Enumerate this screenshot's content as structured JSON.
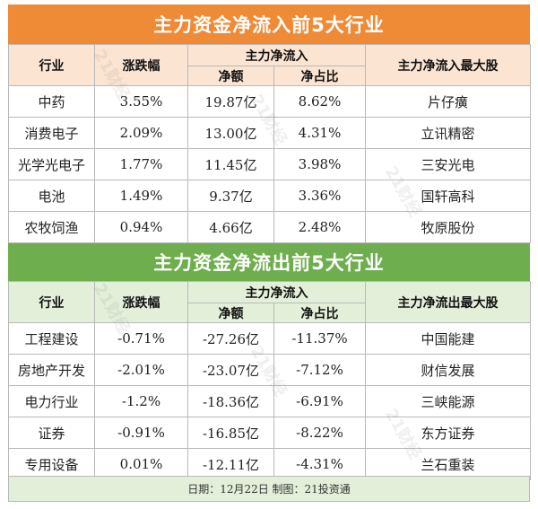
{
  "inflow": {
    "title": "主力资金净流入前5大行业",
    "headers": {
      "industry": "行业",
      "change": "涨跌幅",
      "main_flow": "主力净流入",
      "net_amount": "净额",
      "net_ratio": "净占比",
      "top_stock": "主力净流入最大股"
    },
    "rows": [
      {
        "industry": "中药",
        "change": "3.55%",
        "net_amount": "19.87亿",
        "net_ratio": "8.62%",
        "top_stock": "片仔癀"
      },
      {
        "industry": "消费电子",
        "change": "2.09%",
        "net_amount": "13.00亿",
        "net_ratio": "4.31%",
        "top_stock": "立讯精密"
      },
      {
        "industry": "光学光电子",
        "change": "1.77%",
        "net_amount": "11.45亿",
        "net_ratio": "3.98%",
        "top_stock": "三安光电"
      },
      {
        "industry": "电池",
        "change": "1.49%",
        "net_amount": "9.37亿",
        "net_ratio": "3.36%",
        "top_stock": "国轩高科"
      },
      {
        "industry": "农牧饲渔",
        "change": "0.94%",
        "net_amount": "4.66亿",
        "net_ratio": "2.48%",
        "top_stock": "牧原股份"
      }
    ]
  },
  "outflow": {
    "title": "主力资金净流出前5大行业",
    "headers": {
      "industry": "行业",
      "change": "涨跌幅",
      "main_flow": "主力净流入",
      "net_amount": "净额",
      "net_ratio": "净占比",
      "top_stock": "主力净流出最大股"
    },
    "rows": [
      {
        "industry": "工程建设",
        "change": "-0.71%",
        "net_amount": "-27.26亿",
        "net_ratio": "-11.37%",
        "top_stock": "中国能建"
      },
      {
        "industry": "房地产开发",
        "change": "-2.01%",
        "net_amount": "-23.07亿",
        "net_ratio": "-7.12%",
        "top_stock": "财信发展"
      },
      {
        "industry": "电力行业",
        "change": "-1.2%",
        "net_amount": "-18.36亿",
        "net_ratio": "-6.91%",
        "top_stock": "三峡能源"
      },
      {
        "industry": "证券",
        "change": "-0.91%",
        "net_amount": "-16.85亿",
        "net_ratio": "-8.22%",
        "top_stock": "东方证券"
      },
      {
        "industry": "专用设备",
        "change": "0.01%",
        "net_amount": "-12.11亿",
        "net_ratio": "-4.31%",
        "top_stock": "兰石重装"
      }
    ]
  },
  "footer": "日期：12月22日  制图：21投资通",
  "watermark": "21财经",
  "colors": {
    "inflow_header": "#ef8a37",
    "inflow_subheader": "#fbe4d2",
    "outflow_header": "#6fae4e",
    "outflow_subheader": "#e3efd9"
  }
}
